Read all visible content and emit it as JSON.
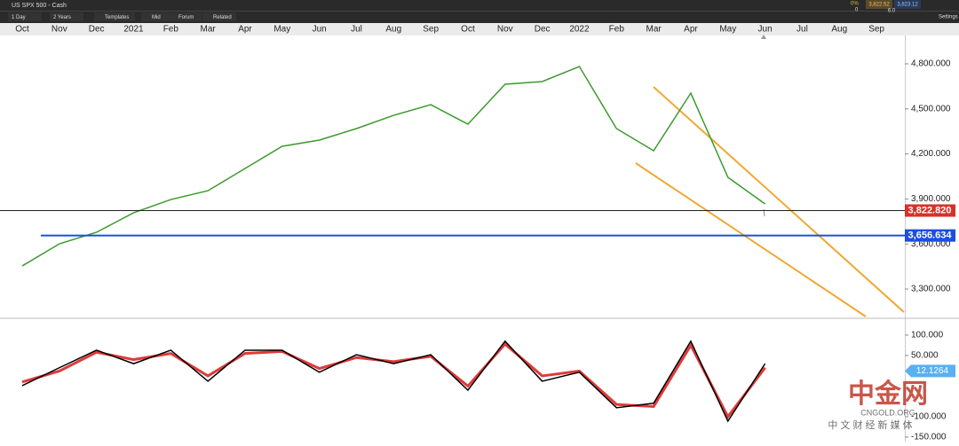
{
  "toolbar": {
    "symbol": "US SPX 500 - Cash",
    "change": "0%",
    "volume": "0",
    "bid": "3,822.52",
    "ask": "3,823.12",
    "spread": "6.0",
    "settings": "Settings",
    "buttons": [
      "1 Day",
      "2 Years",
      "Templates",
      "Mid",
      "Forum",
      "Related"
    ]
  },
  "chart_data": [
    {
      "type": "line",
      "categories": [
        "Oct",
        "Nov",
        "Dec",
        "2021",
        "Feb",
        "Mar",
        "Apr",
        "May",
        "Jun",
        "Jul",
        "Aug",
        "Sep",
        "Oct",
        "Nov",
        "Dec",
        "2022",
        "Feb",
        "Mar",
        "Apr",
        "May",
        "Jun",
        "Jul",
        "Aug",
        "Sep"
      ],
      "values": [
        3454,
        3601,
        3678,
        3808,
        3896,
        3955,
        4103,
        4251,
        4292,
        4369,
        4457,
        4528,
        4398,
        4664,
        4682,
        4782,
        4369,
        4221,
        4605,
        4044,
        3867,
        null,
        null,
        null
      ],
      "color": "#3c9a2e",
      "ylim": [
        3111,
        4989
      ],
      "yticks": [
        {
          "value": 4800,
          "label": "4,800.000"
        },
        {
          "value": 4500,
          "label": "4,500.000"
        },
        {
          "value": 4200,
          "label": "4,200.000"
        },
        {
          "value": 3900,
          "label": "3,900.000"
        },
        {
          "value": 3600,
          "label": "3,600.000"
        },
        {
          "value": 3300,
          "label": "3,300.000"
        }
      ],
      "levels": [
        {
          "value": 3822.82,
          "label": "3,822.820",
          "color": "#d8312a"
        },
        {
          "value": 3656.634,
          "label": "3,656.634",
          "color": "#1c4fe0"
        }
      ]
    },
    {
      "type": "line",
      "ylim": [
        -161,
        139
      ],
      "yticks": [
        {
          "value": 100,
          "label": "100.000"
        },
        {
          "value": 50,
          "label": "50.000"
        },
        {
          "value": -100,
          "label": "-100.000"
        },
        {
          "value": -150,
          "label": "-150.000"
        }
      ],
      "series": [
        {
          "color": "#e03a3a",
          "values": [
            -15,
            12,
            58,
            40,
            55,
            0,
            55,
            60,
            18,
            45,
            35,
            48,
            -25,
            78,
            0,
            12,
            -70,
            -75,
            75,
            -100,
            20,
            null,
            null,
            null
          ]
        },
        {
          "color": "#000000",
          "values": [
            -24,
            20,
            63,
            30,
            63,
            -13,
            63,
            63,
            9,
            52,
            30,
            52,
            -35,
            85,
            -13,
            9,
            -78,
            -67,
            85,
            -111,
            30,
            null,
            null,
            null
          ]
        }
      ],
      "last_label": {
        "value": 12.1264,
        "label": "12.1264"
      }
    }
  ],
  "watermark": {
    "logo": "中金网",
    "site": "CNGOLD.ORG",
    "slogan": "中 文 财 经 新 媒 体"
  }
}
